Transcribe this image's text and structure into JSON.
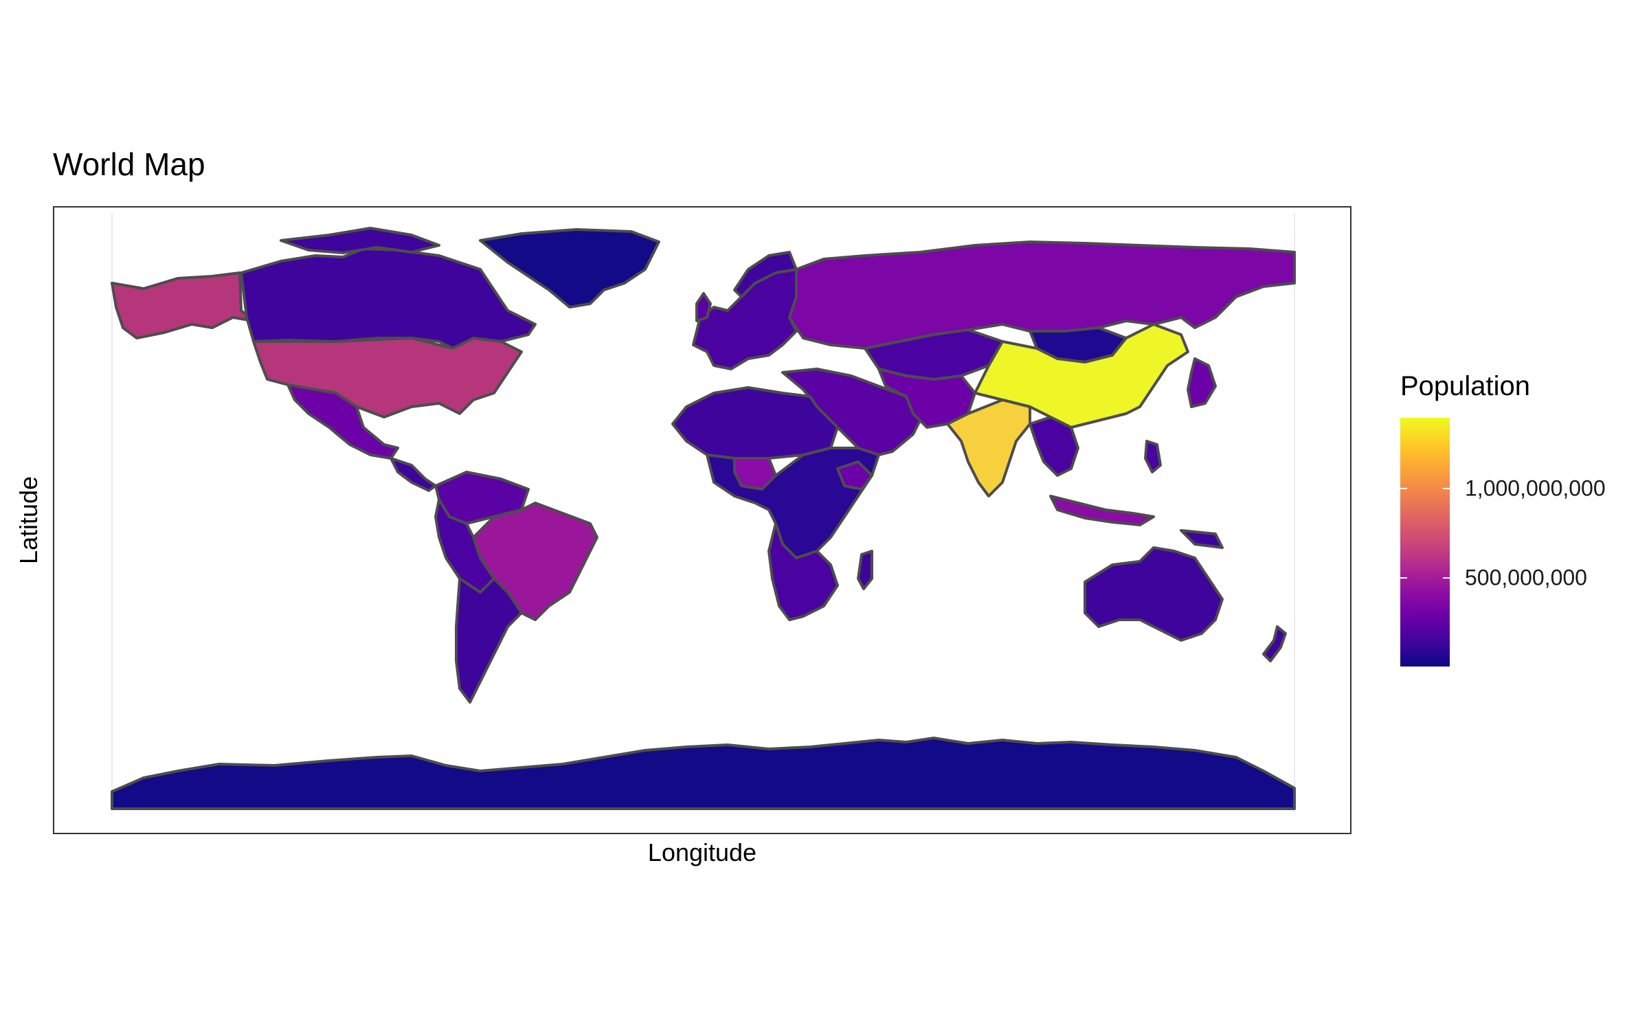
{
  "chart_data": {
    "type": "choropleth",
    "title": "World Map",
    "xlabel": "Longitude",
    "ylabel": "Latitude",
    "legend": {
      "title": "Population",
      "placement": "right",
      "palette": "plasma",
      "colors": [
        "#0d0887",
        "#6a00a8",
        "#b12a90",
        "#e16462",
        "#fca636",
        "#f0f921"
      ],
      "breaks": [
        500000000,
        1000000000
      ],
      "labels": [
        "500,000,000",
        "1,000,000,000"
      ],
      "range": [
        0,
        1400000000
      ]
    },
    "border_color": "#4d4d4d",
    "grid": false
  }
}
